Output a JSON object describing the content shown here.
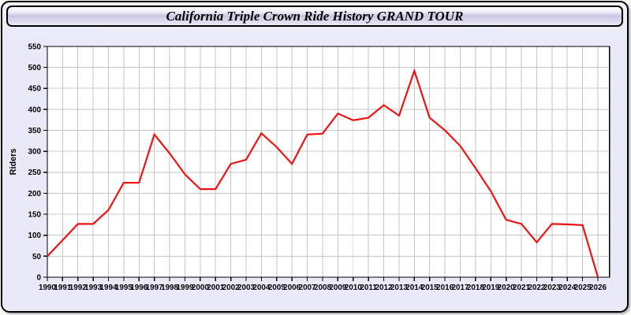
{
  "title": "California Triple Crown Ride History GRAND TOUR",
  "chart_data": {
    "type": "line",
    "title": "California Triple Crown Ride History GRAND TOUR",
    "xlabel": "",
    "ylabel": "Riders",
    "ylim": [
      0,
      550
    ],
    "ytick_step": 50,
    "grid": true,
    "legend_position": "none",
    "line_color": "#ee1111",
    "x": [
      1990,
      1991,
      1992,
      1993,
      1994,
      1995,
      1996,
      1997,
      1998,
      1999,
      2000,
      2001,
      2002,
      2003,
      2004,
      2005,
      2006,
      2007,
      2008,
      2009,
      2010,
      2011,
      2012,
      2013,
      2014,
      2015,
      2016,
      2017,
      2018,
      2019,
      2020,
      2021,
      2022,
      2023,
      2024,
      2025,
      2026
    ],
    "values": [
      50,
      88,
      127,
      127,
      160,
      225,
      225,
      340,
      295,
      245,
      210,
      210,
      270,
      280,
      343,
      310,
      270,
      340,
      342,
      390,
      374,
      380,
      410,
      385,
      492,
      380,
      350,
      313,
      260,
      205,
      137,
      127,
      83,
      127,
      126,
      124,
      0
    ]
  },
  "colors": {
    "window_background": "#e9e9f8",
    "titlebar_mid": "#c6c6e3",
    "plot_background": "#ffffff",
    "grid_color": "#c6c6c6",
    "axis_color": "#000000",
    "line_color": "#ee1111",
    "label_color": "#000000"
  }
}
